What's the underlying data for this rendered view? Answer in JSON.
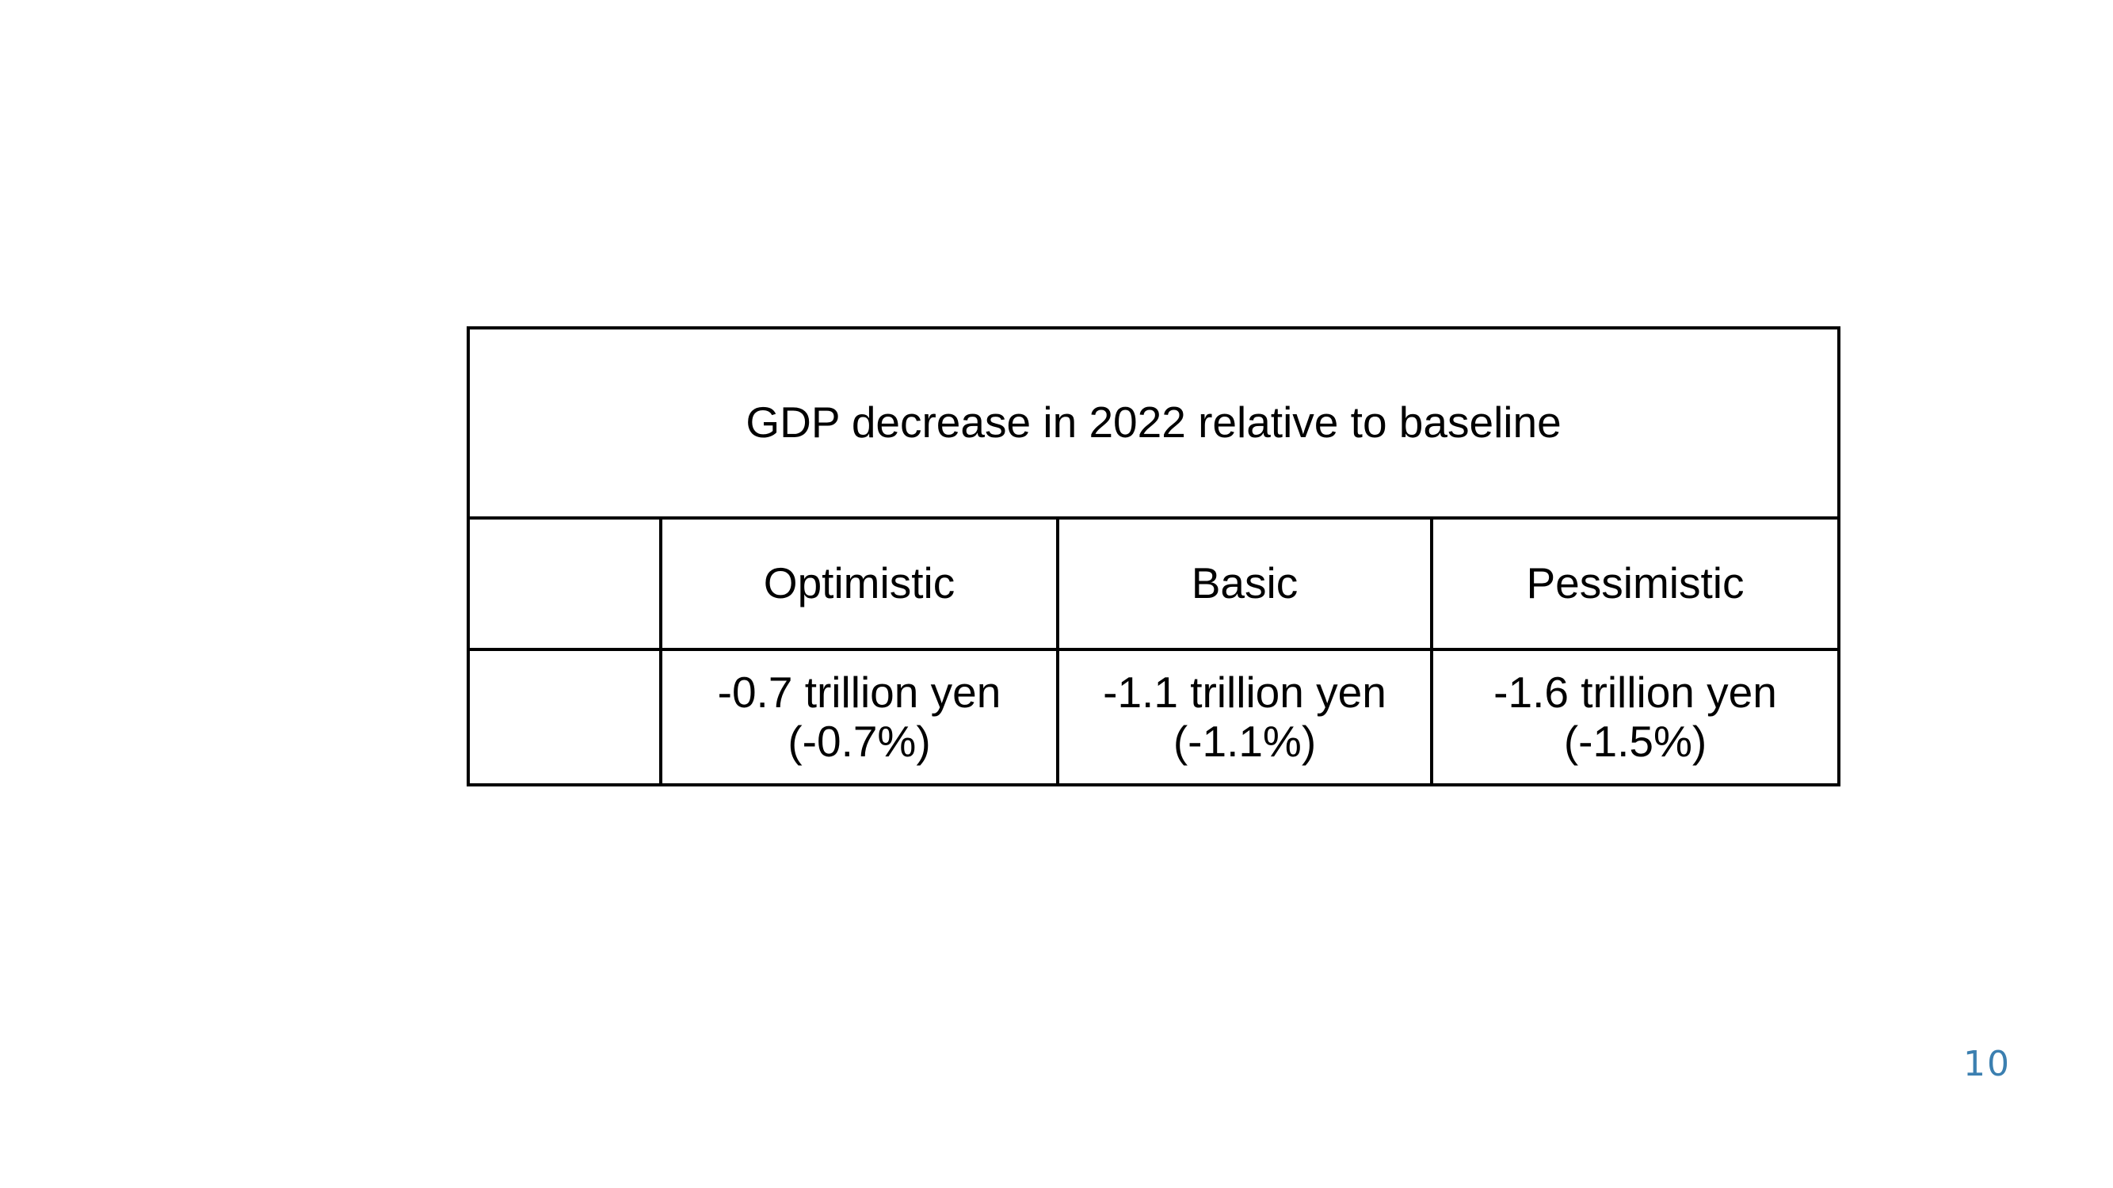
{
  "table": {
    "title": "GDP decrease in 2022 relative to baseline",
    "row_header_top": "",
    "row_header_bottom": "",
    "columns": [
      {
        "label": "Optimistic",
        "value_line1": "-0.7 trillion yen",
        "value_line2": "(-0.7%)"
      },
      {
        "label": "Basic",
        "value_line1": "-1.1 trillion yen",
        "value_line2": "(-1.1%)"
      },
      {
        "label": "Pessimistic",
        "value_line1": "-1.6 trillion yen",
        "value_line2": "(-1.5%)"
      }
    ]
  },
  "page_number": "10",
  "colors": {
    "page_number": "#3b7fb0",
    "border": "#000000",
    "text": "#000000"
  }
}
